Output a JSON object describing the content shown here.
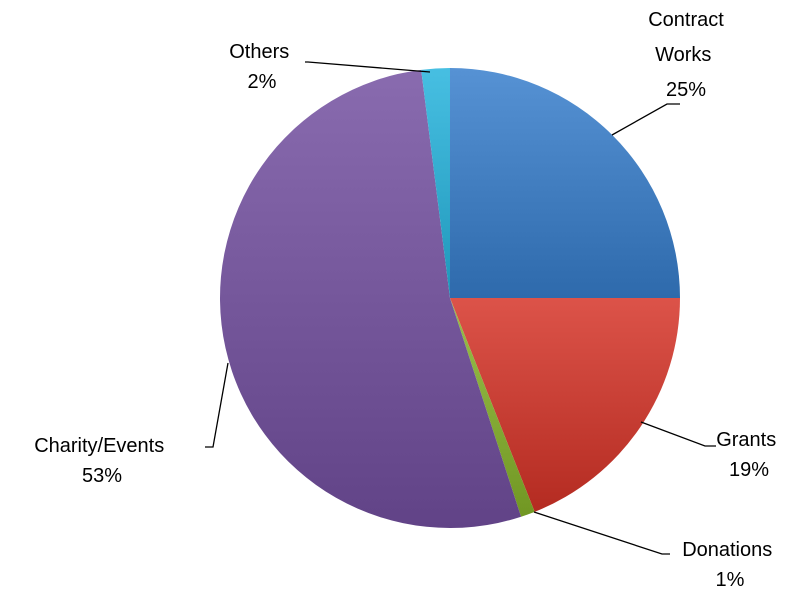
{
  "chart_data": {
    "type": "pie",
    "title": "",
    "start_angle_deg": 0,
    "direction": "clockwise",
    "legend": "none",
    "slices": [
      {
        "label": "Contract Works",
        "value": 25,
        "display": "25%",
        "color": "#4A86C8"
      },
      {
        "label": "Grants",
        "value": 19,
        "display": "19%",
        "color": "#D0473D"
      },
      {
        "label": "Donations",
        "value": 1,
        "display": "1%",
        "color": "#8DB33F"
      },
      {
        "label": "Charity/Events",
        "value": 53,
        "display": "53%",
        "color": "#7D5FA3"
      },
      {
        "label": "Others",
        "value": 2,
        "display": "2%",
        "color": "#3BB3D6"
      }
    ]
  }
}
